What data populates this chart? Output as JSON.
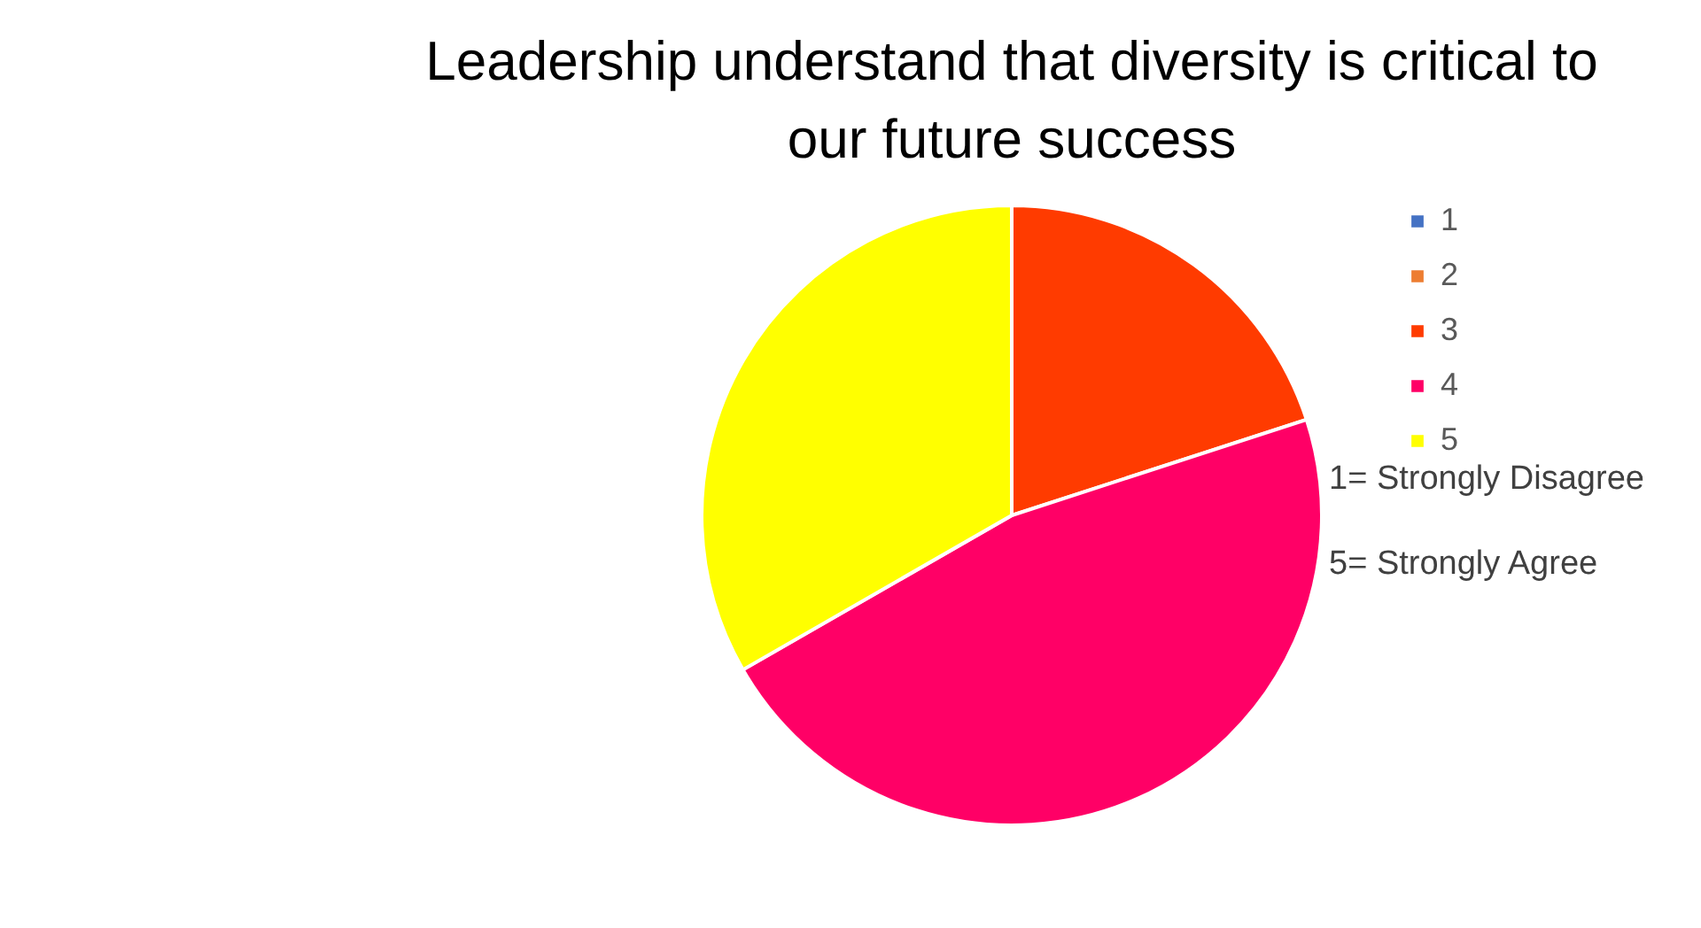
{
  "chart_data": {
    "type": "pie",
    "title": "Leadership understand that diversity is critical to our future success",
    "categories": [
      "1",
      "2",
      "3",
      "4",
      "5"
    ],
    "values": [
      0,
      0,
      20,
      46.7,
      33.3
    ],
    "colors": [
      "#4472c4",
      "#ed7d31",
      "#ff3b00",
      "#ff0066",
      "#ffff00"
    ],
    "legend": "right",
    "annotations": [
      "1= Strongly Disagree",
      "5= Strongly Agree"
    ]
  }
}
